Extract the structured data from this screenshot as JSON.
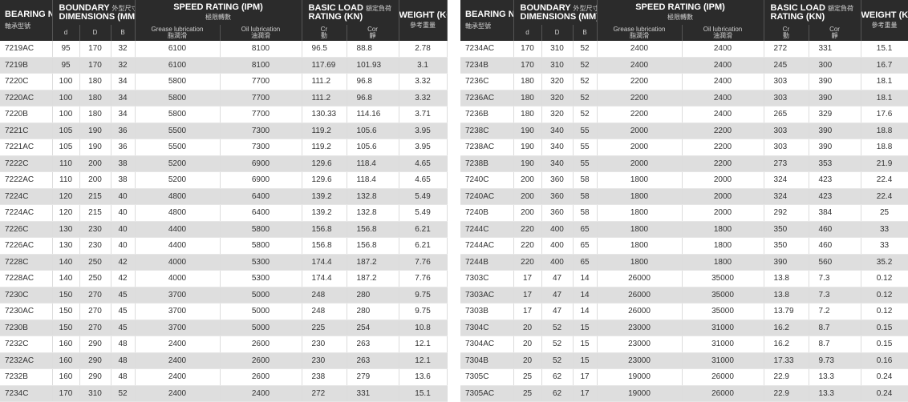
{
  "header": {
    "bearing_no": "BEARING NO.",
    "bearing_no_zh": "軸承型號",
    "boundary_title": "BOUNDARY",
    "boundary_zh": "外型尺寸",
    "boundary_title2": "DIMENSIONS (MM)",
    "speed_title": "SPEED RATING (IPM)",
    "speed_zh": "極限轉數",
    "load_title": "BASIC LOAD",
    "load_zh": "額定負荷",
    "load_title2": "RATING (KN)",
    "weight_title": "WEIGHT (KG)",
    "weight_zh": "參考重量",
    "col_d": "d",
    "col_D": "D",
    "col_B": "B",
    "col_grease": "Grease lubrication",
    "col_grease_zh": "脂潤滑",
    "col_oil": "Oil lubrication",
    "col_oil_zh": "油潤滑",
    "col_cr": "Cr",
    "col_cr_zh": "動",
    "col_cor": "Cor",
    "col_cor_zh": "靜"
  },
  "left_rows": [
    [
      "7219AC",
      "95",
      "170",
      "32",
      "6100",
      "8100",
      "96.5",
      "88.8",
      "2.78"
    ],
    [
      "7219B",
      "95",
      "170",
      "32",
      "6100",
      "8100",
      "117.69",
      "101.93",
      "3.1"
    ],
    [
      "7220C",
      "100",
      "180",
      "34",
      "5800",
      "7700",
      "111.2",
      "96.8",
      "3.32"
    ],
    [
      "7220AC",
      "100",
      "180",
      "34",
      "5800",
      "7700",
      "111.2",
      "96.8",
      "3.32"
    ],
    [
      "7220B",
      "100",
      "180",
      "34",
      "5800",
      "7700",
      "130.33",
      "114.16",
      "3.71"
    ],
    [
      "7221C",
      "105",
      "190",
      "36",
      "5500",
      "7300",
      "119.2",
      "105.6",
      "3.95"
    ],
    [
      "7221AC",
      "105",
      "190",
      "36",
      "5500",
      "7300",
      "119.2",
      "105.6",
      "3.95"
    ],
    [
      "7222C",
      "110",
      "200",
      "38",
      "5200",
      "6900",
      "129.6",
      "118.4",
      "4.65"
    ],
    [
      "7222AC",
      "110",
      "200",
      "38",
      "5200",
      "6900",
      "129.6",
      "118.4",
      "4.65"
    ],
    [
      "7224C",
      "120",
      "215",
      "40",
      "4800",
      "6400",
      "139.2",
      "132.8",
      "5.49"
    ],
    [
      "7224AC",
      "120",
      "215",
      "40",
      "4800",
      "6400",
      "139.2",
      "132.8",
      "5.49"
    ],
    [
      "7226C",
      "130",
      "230",
      "40",
      "4400",
      "5800",
      "156.8",
      "156.8",
      "6.21"
    ],
    [
      "7226AC",
      "130",
      "230",
      "40",
      "4400",
      "5800",
      "156.8",
      "156.8",
      "6.21"
    ],
    [
      "7228C",
      "140",
      "250",
      "42",
      "4000",
      "5300",
      "174.4",
      "187.2",
      "7.76"
    ],
    [
      "7228AC",
      "140",
      "250",
      "42",
      "4000",
      "5300",
      "174.4",
      "187.2",
      "7.76"
    ],
    [
      "7230C",
      "150",
      "270",
      "45",
      "3700",
      "5000",
      "248",
      "280",
      "9.75"
    ],
    [
      "7230AC",
      "150",
      "270",
      "45",
      "3700",
      "5000",
      "248",
      "280",
      "9.75"
    ],
    [
      "7230B",
      "150",
      "270",
      "45",
      "3700",
      "5000",
      "225",
      "254",
      "10.8"
    ],
    [
      "7232C",
      "160",
      "290",
      "48",
      "2400",
      "2600",
      "230",
      "263",
      "12.1"
    ],
    [
      "7232AC",
      "160",
      "290",
      "48",
      "2400",
      "2600",
      "230",
      "263",
      "12.1"
    ],
    [
      "7232B",
      "160",
      "290",
      "48",
      "2400",
      "2600",
      "238",
      "279",
      "13.6"
    ],
    [
      "7234C",
      "170",
      "310",
      "52",
      "2400",
      "2400",
      "272",
      "331",
      "15.1"
    ]
  ],
  "right_rows": [
    [
      "7234AC",
      "170",
      "310",
      "52",
      "2400",
      "2400",
      "272",
      "331",
      "15.1"
    ],
    [
      "7234B",
      "170",
      "310",
      "52",
      "2400",
      "2400",
      "245",
      "300",
      "16.7"
    ],
    [
      "7236C",
      "180",
      "320",
      "52",
      "2200",
      "2400",
      "303",
      "390",
      "18.1"
    ],
    [
      "7236AC",
      "180",
      "320",
      "52",
      "2200",
      "2400",
      "303",
      "390",
      "18.1"
    ],
    [
      "7236B",
      "180",
      "320",
      "52",
      "2200",
      "2400",
      "265",
      "329",
      "17.6"
    ],
    [
      "7238C",
      "190",
      "340",
      "55",
      "2000",
      "2200",
      "303",
      "390",
      "18.8"
    ],
    [
      "7238AC",
      "190",
      "340",
      "55",
      "2000",
      "2200",
      "303",
      "390",
      "18.8"
    ],
    [
      "7238B",
      "190",
      "340",
      "55",
      "2000",
      "2200",
      "273",
      "353",
      "21.9"
    ],
    [
      "7240C",
      "200",
      "360",
      "58",
      "1800",
      "2000",
      "324",
      "423",
      "22.4"
    ],
    [
      "7240AC",
      "200",
      "360",
      "58",
      "1800",
      "2000",
      "324",
      "423",
      "22.4"
    ],
    [
      "7240B",
      "200",
      "360",
      "58",
      "1800",
      "2000",
      "292",
      "384",
      "25"
    ],
    [
      "7244C",
      "220",
      "400",
      "65",
      "1800",
      "1800",
      "350",
      "460",
      "33"
    ],
    [
      "7244AC",
      "220",
      "400",
      "65",
      "1800",
      "1800",
      "350",
      "460",
      "33"
    ],
    [
      "7244B",
      "220",
      "400",
      "65",
      "1800",
      "1800",
      "390",
      "560",
      "35.2"
    ],
    [
      "7303C",
      "17",
      "47",
      "14",
      "26000",
      "35000",
      "13.8",
      "7.3",
      "0.12"
    ],
    [
      "7303AC",
      "17",
      "47",
      "14",
      "26000",
      "35000",
      "13.8",
      "7.3",
      "0.12"
    ],
    [
      "7303B",
      "17",
      "47",
      "14",
      "26000",
      "35000",
      "13.79",
      "7.2",
      "0.12"
    ],
    [
      "7304C",
      "20",
      "52",
      "15",
      "23000",
      "31000",
      "16.2",
      "8.7",
      "0.15"
    ],
    [
      "7304AC",
      "20",
      "52",
      "15",
      "23000",
      "31000",
      "16.2",
      "8.7",
      "0.15"
    ],
    [
      "7304B",
      "20",
      "52",
      "15",
      "23000",
      "31000",
      "17.33",
      "9.73",
      "0.16"
    ],
    [
      "7305C",
      "25",
      "62",
      "17",
      "19000",
      "26000",
      "22.9",
      "13.3",
      "0.24"
    ],
    [
      "7305AC",
      "25",
      "62",
      "17",
      "19000",
      "26000",
      "22.9",
      "13.3",
      "0.24"
    ]
  ]
}
